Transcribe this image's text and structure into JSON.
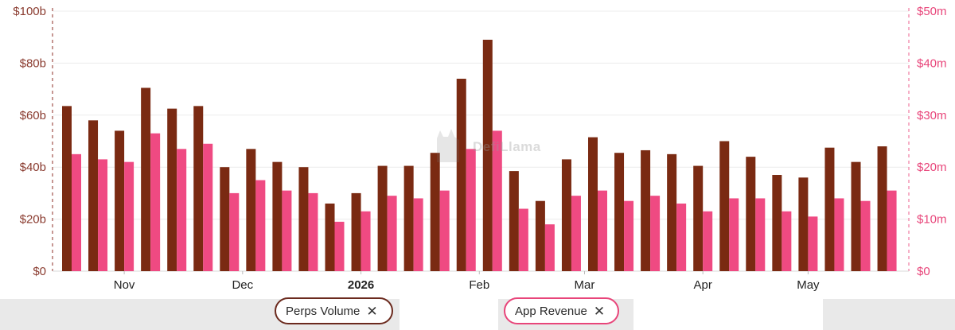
{
  "chart_data": {
    "type": "bar",
    "watermark": "DefiLlama",
    "x_ticks": [
      {
        "label": "Nov",
        "index": 2,
        "bold": false
      },
      {
        "label": "Dec",
        "index": 6.5,
        "bold": false
      },
      {
        "label": "2026",
        "index": 11,
        "bold": true
      },
      {
        "label": "Feb",
        "index": 15.5,
        "bold": false
      },
      {
        "label": "Mar",
        "index": 19.5,
        "bold": false
      },
      {
        "label": "Apr",
        "index": 24,
        "bold": false
      },
      {
        "label": "May",
        "index": 28,
        "bold": false
      }
    ],
    "y_left": {
      "ylim": [
        0,
        100
      ],
      "ticks": [
        "$0",
        "$20b",
        "$40b",
        "$60b",
        "$80b",
        "$100b"
      ],
      "color": "#8a3b2f"
    },
    "y_right": {
      "ylim": [
        0,
        50
      ],
      "ticks": [
        "$0",
        "$10m",
        "$20m",
        "$30m",
        "$40m",
        "$50m"
      ],
      "color": "#e8457a"
    },
    "series": [
      {
        "name": "Perps Volume",
        "axis": "left",
        "color": "#7a2a12",
        "values": [
          63.5,
          58,
          54,
          70.5,
          62.5,
          63.5,
          40,
          47,
          42,
          40,
          26,
          30,
          40.5,
          40.5,
          45.5,
          74,
          89,
          38.5,
          27,
          43,
          51.5,
          45.5,
          46.5,
          45,
          40.5,
          50,
          44,
          37,
          36,
          47.5,
          42,
          48
        ]
      },
      {
        "name": "App Revenue",
        "axis": "right",
        "color": "#ef4a82",
        "values": [
          22.5,
          21.5,
          21,
          26.5,
          23.5,
          24.5,
          15,
          17.5,
          15.5,
          15,
          9.5,
          11.5,
          14.5,
          14,
          15.5,
          23.5,
          27,
          12,
          9,
          14.5,
          15.5,
          13.5,
          14.5,
          13,
          11.5,
          14,
          14,
          11.5,
          10.5,
          14,
          13.5,
          15.5
        ]
      }
    ]
  },
  "legend": {
    "volume_label": "Perps Volume",
    "revenue_label": "App Revenue",
    "close_glyph": "✕"
  }
}
